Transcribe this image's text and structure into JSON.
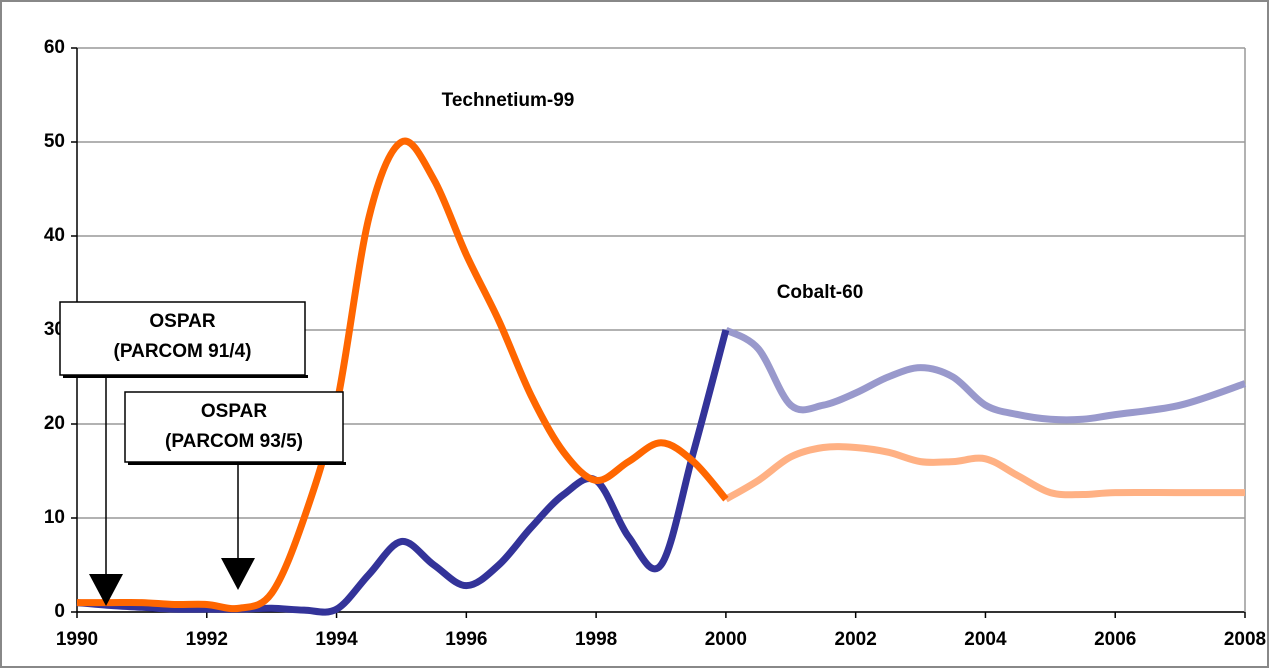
{
  "chart_data": {
    "type": "line",
    "xlim": [
      1990,
      2008
    ],
    "xticks": [
      1990,
      1992,
      1994,
      1996,
      1998,
      2000,
      2002,
      2004,
      2006,
      2008
    ],
    "ylim": [
      0,
      60
    ],
    "yticks": [
      0,
      10,
      20,
      30,
      40,
      50,
      60
    ],
    "grid": true,
    "series": [
      {
        "name": "Technetium-99",
        "color": "#ff6600",
        "x": [
          1990,
          1990.5,
          1991,
          1991.5,
          1992,
          1992.5,
          1993,
          1993.5,
          1994,
          1994.5,
          1995,
          1995.5,
          1996,
          1996.5,
          1997,
          1997.5,
          1998,
          1998.5,
          1999,
          1999.5,
          2000
        ],
        "values": [
          1,
          1,
          1,
          0.8,
          0.8,
          0.4,
          2,
          10,
          22,
          42,
          50,
          46,
          38,
          31,
          23,
          17,
          14,
          16,
          18,
          16,
          12
        ]
      },
      {
        "color": "#ffb184",
        "x": [
          2000,
          2000.5,
          2001,
          2001.5,
          2002,
          2002.5,
          2003,
          2003.5,
          2004,
          2004.5,
          2005,
          2005.5,
          2006,
          2007,
          2008
        ],
        "values": [
          12,
          14,
          16.5,
          17.5,
          17.5,
          17,
          16,
          16,
          16.3,
          14.5,
          12.7,
          12.5,
          12.7,
          12.7,
          12.7
        ]
      },
      {
        "name": "Cobalt-60",
        "color": "#333399",
        "x": [
          1990,
          1990.5,
          1991,
          1991.5,
          1992,
          1992.5,
          1993,
          1993.5,
          1994,
          1994.5,
          1995,
          1995.5,
          1996,
          1996.5,
          1997,
          1997.5,
          1998,
          1998.5,
          1999,
          1999.5,
          2000
        ],
        "values": [
          1,
          0.7,
          0.5,
          0.3,
          0.3,
          0.3,
          0.4,
          0.2,
          0.3,
          4,
          7.5,
          5,
          2.8,
          5,
          9,
          12.5,
          14,
          8,
          5,
          17,
          30
        ]
      },
      {
        "color": "#9999cc",
        "x": [
          2000,
          2000.5,
          2001,
          2001.5,
          2002,
          2002.5,
          2003,
          2003.5,
          2004,
          2004.5,
          2005,
          2005.5,
          2006,
          2007,
          2008
        ],
        "values": [
          30,
          28,
          22,
          22,
          23.3,
          25,
          26,
          25,
          22,
          21,
          20.5,
          20.5,
          21,
          22,
          24.3
        ]
      }
    ],
    "annotations": [
      {
        "lines": [
          "OSPAR",
          "(PARCOM 91/4)"
        ]
      },
      {
        "lines": [
          "OSPAR",
          "(PARCOM 93/5)"
        ]
      }
    ]
  }
}
